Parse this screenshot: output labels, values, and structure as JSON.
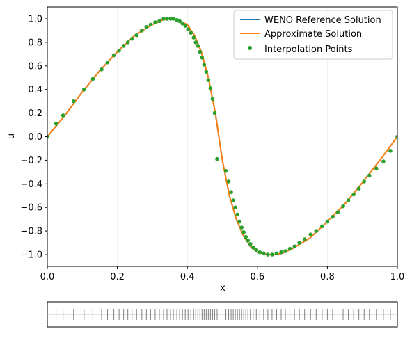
{
  "chart_data": [
    {
      "type": "line",
      "title": "",
      "xlabel": "x",
      "ylabel": "u",
      "xlim": [
        0,
        1
      ],
      "ylim": [
        -1.1,
        1.1
      ],
      "xticks": [
        0.0,
        0.2,
        0.4,
        0.6,
        0.8,
        1.0
      ],
      "xtick_labels": [
        "0.0",
        "0.2",
        "0.4",
        "0.6",
        "0.8",
        "1.0"
      ],
      "yticks": [
        -1.0,
        -0.8,
        -0.6,
        -0.4,
        -0.2,
        0.0,
        0.2,
        0.4,
        0.6,
        0.8,
        1.0
      ],
      "ytick_labels": [
        "−1.0",
        "−0.8",
        "−0.6",
        "−0.4",
        "−0.2",
        "0.0",
        "0.2",
        "0.4",
        "0.6",
        "0.8",
        "1.0"
      ],
      "grid": "vertical-faint",
      "legend_position": "top-right",
      "series": [
        {
          "name": "WENO Reference Solution",
          "kind": "line",
          "color": "#1f77b4",
          "x": [
            0.0,
            0.05,
            0.1,
            0.15,
            0.2,
            0.25,
            0.3,
            0.33,
            0.35,
            0.37,
            0.4,
            0.42,
            0.44,
            0.46,
            0.48,
            0.5,
            0.52,
            0.54,
            0.56,
            0.58,
            0.6,
            0.63,
            0.65,
            0.67,
            0.7,
            0.75,
            0.8,
            0.85,
            0.9,
            0.95,
            1.0
          ],
          "y": [
            0.0,
            0.18,
            0.38,
            0.56,
            0.72,
            0.86,
            0.95,
            0.99,
            1.0,
            0.99,
            0.95,
            0.86,
            0.72,
            0.5,
            0.2,
            -0.2,
            -0.5,
            -0.7,
            -0.84,
            -0.93,
            -0.98,
            -1.0,
            -1.0,
            -0.99,
            -0.95,
            -0.86,
            -0.72,
            -0.57,
            -0.39,
            -0.2,
            0.0
          ]
        },
        {
          "name": "Approximate Solution",
          "kind": "line",
          "color": "#ff7f0e",
          "x": [
            0.0,
            0.05,
            0.1,
            0.15,
            0.2,
            0.25,
            0.3,
            0.33,
            0.35,
            0.37,
            0.4,
            0.42,
            0.44,
            0.46,
            0.48,
            0.5,
            0.52,
            0.54,
            0.56,
            0.58,
            0.6,
            0.63,
            0.65,
            0.67,
            0.7,
            0.75,
            0.8,
            0.85,
            0.9,
            0.95,
            1.0
          ],
          "y": [
            0.0,
            0.18,
            0.38,
            0.56,
            0.72,
            0.86,
            0.95,
            0.99,
            1.0,
            0.99,
            0.95,
            0.86,
            0.72,
            0.5,
            0.2,
            -0.2,
            -0.5,
            -0.7,
            -0.84,
            -0.93,
            -0.98,
            -1.0,
            -1.0,
            -0.99,
            -0.95,
            -0.86,
            -0.72,
            -0.57,
            -0.39,
            -0.2,
            0.0
          ]
        },
        {
          "name": "Interpolation Points",
          "kind": "scatter",
          "color": "#2ca02c",
          "x": [
            0.0,
            0.025,
            0.045,
            0.075,
            0.105,
            0.13,
            0.155,
            0.172,
            0.19,
            0.205,
            0.218,
            0.23,
            0.242,
            0.255,
            0.27,
            0.283,
            0.295,
            0.308,
            0.32,
            0.332,
            0.342,
            0.352,
            0.36,
            0.37,
            0.378,
            0.386,
            0.394,
            0.402,
            0.41,
            0.418,
            0.424,
            0.43,
            0.436,
            0.442,
            0.448,
            0.454,
            0.46,
            0.466,
            0.472,
            0.478,
            0.485,
            0.51,
            0.518,
            0.525,
            0.531,
            0.537,
            0.543,
            0.549,
            0.555,
            0.561,
            0.567,
            0.573,
            0.58,
            0.588,
            0.597,
            0.607,
            0.618,
            0.63,
            0.642,
            0.655,
            0.668,
            0.68,
            0.693,
            0.706,
            0.72,
            0.735,
            0.752,
            0.768,
            0.785,
            0.8,
            0.815,
            0.83,
            0.845,
            0.86,
            0.875,
            0.89,
            0.905,
            0.92,
            0.94,
            0.96,
            0.98,
            1.0
          ],
          "y": [
            0.0,
            0.11,
            0.18,
            0.3,
            0.4,
            0.49,
            0.57,
            0.63,
            0.69,
            0.73,
            0.77,
            0.8,
            0.83,
            0.86,
            0.9,
            0.93,
            0.95,
            0.97,
            0.98,
            1.0,
            1.0,
            1.0,
            1.0,
            0.99,
            0.98,
            0.96,
            0.94,
            0.91,
            0.88,
            0.84,
            0.8,
            0.77,
            0.72,
            0.67,
            0.61,
            0.55,
            0.48,
            0.41,
            0.32,
            0.2,
            -0.19,
            -0.29,
            -0.38,
            -0.47,
            -0.54,
            -0.6,
            -0.66,
            -0.72,
            -0.77,
            -0.81,
            -0.85,
            -0.88,
            -0.91,
            -0.94,
            -0.96,
            -0.98,
            -0.99,
            -1.0,
            -1.0,
            -0.99,
            -0.98,
            -0.97,
            -0.95,
            -0.93,
            -0.9,
            -0.87,
            -0.83,
            -0.8,
            -0.76,
            -0.72,
            -0.68,
            -0.64,
            -0.59,
            -0.54,
            -0.49,
            -0.44,
            -0.38,
            -0.33,
            -0.27,
            -0.21,
            -0.12,
            0.0
          ]
        }
      ]
    },
    {
      "type": "rug",
      "xlim": [
        0,
        1
      ],
      "marks": [
        0.025,
        0.045,
        0.075,
        0.105,
        0.13,
        0.155,
        0.172,
        0.19,
        0.205,
        0.218,
        0.23,
        0.242,
        0.255,
        0.27,
        0.283,
        0.295,
        0.308,
        0.32,
        0.332,
        0.342,
        0.352,
        0.36,
        0.37,
        0.378,
        0.386,
        0.394,
        0.402,
        0.41,
        0.418,
        0.424,
        0.43,
        0.436,
        0.442,
        0.448,
        0.454,
        0.46,
        0.466,
        0.472,
        0.478,
        0.485,
        0.51,
        0.518,
        0.525,
        0.531,
        0.537,
        0.543,
        0.549,
        0.555,
        0.561,
        0.567,
        0.573,
        0.58,
        0.588,
        0.597,
        0.607,
        0.618,
        0.63,
        0.642,
        0.655,
        0.668,
        0.68,
        0.693,
        0.706,
        0.72,
        0.735,
        0.752,
        0.768,
        0.785,
        0.8,
        0.815,
        0.83,
        0.845,
        0.86,
        0.875,
        0.89,
        0.905,
        0.92,
        0.94,
        0.96,
        0.98
      ],
      "color": "#808080"
    }
  ]
}
